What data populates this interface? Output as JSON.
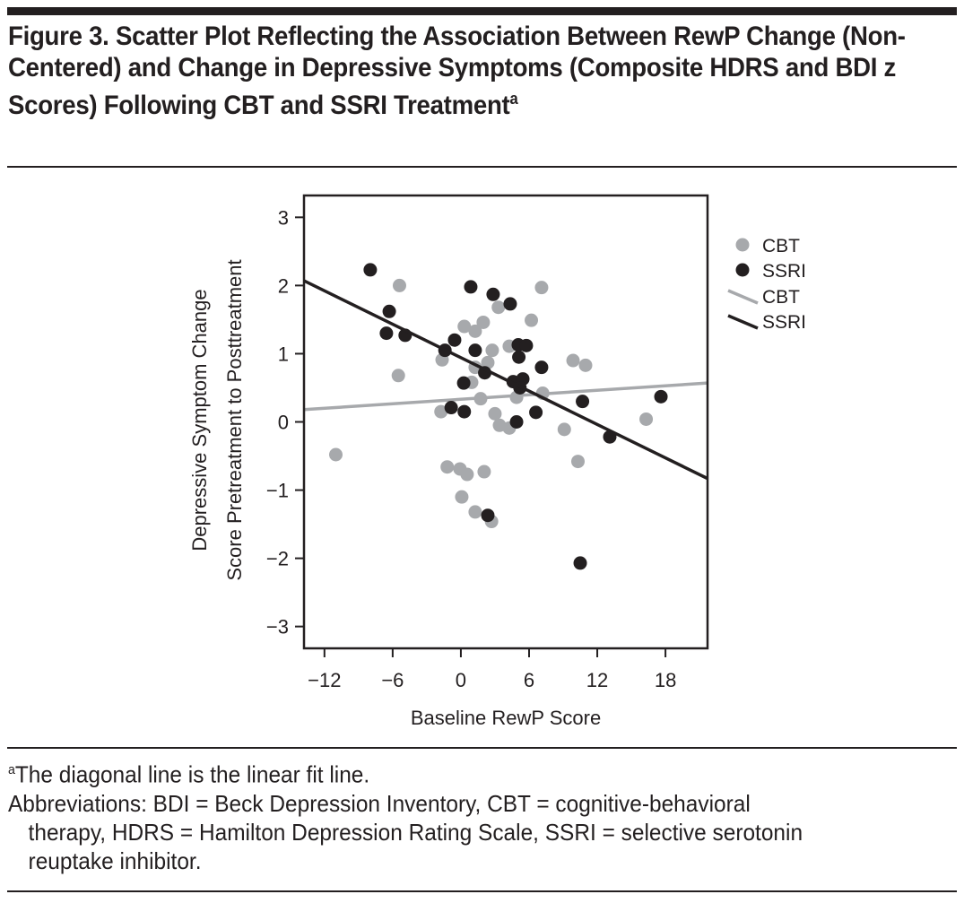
{
  "figure": {
    "title_prefix": "Figure 3.",
    "title_text": "Scatter Plot Reflecting the Association Between RewP Change (Non-Centered) and Change in Depressive Symptoms (Composite HDRS and BDI z Scores) Following CBT and SSRI Treatment",
    "title_footnote_mark": "a",
    "footnote_mark": "a",
    "footnote_text": "The diagonal line is the linear fit line.",
    "abbreviations_line1": "Abbreviations: BDI = Beck Depression Inventory, CBT = cognitive-behavioral",
    "abbreviations_line2": "therapy, HDRS = Hamilton Depression Rating Scale, SSRI = selective serotonin",
    "abbreviations_line3": "reuptake inhibitor."
  },
  "chart_data": {
    "type": "scatter",
    "title": "",
    "xlabel": "Baseline RewP Score",
    "ylabel_line1": "Depressive Symptom Change",
    "ylabel_line2": "Score Pretreatment to Posttreatment",
    "xlim": [
      -13.8,
      21.7
    ],
    "ylim": [
      -3.32,
      3.32
    ],
    "xticks": [
      -12,
      -6,
      0,
      6,
      12,
      18
    ],
    "xtick_labels": [
      "−12",
      "−6",
      "0",
      "6",
      "12",
      "18"
    ],
    "yticks": [
      3,
      2,
      1,
      0,
      -1,
      -2,
      -3
    ],
    "ytick_labels": [
      "3",
      "2",
      "1",
      "0",
      "−1",
      "−2",
      "−3"
    ],
    "grid": false,
    "legend_position": "right-outside",
    "legend": [
      {
        "label": "CBT",
        "kind": "marker",
        "series": "CBT"
      },
      {
        "label": "SSRI",
        "kind": "marker",
        "series": "SSRI"
      },
      {
        "label": "CBT",
        "kind": "line",
        "series": "CBT"
      },
      {
        "label": "SSRI",
        "kind": "line",
        "series": "SSRI"
      }
    ],
    "series": [
      {
        "name": "CBT",
        "color": "#a7a9ac",
        "points": [
          [
            -5.4,
            2.0
          ],
          [
            -1.65,
            0.91
          ],
          [
            -5.5,
            0.68
          ],
          [
            -1.75,
            0.15
          ],
          [
            -11.0,
            -0.48
          ],
          [
            7.1,
            1.97
          ],
          [
            3.3,
            1.68
          ],
          [
            6.2,
            1.49
          ],
          [
            0.3,
            1.4
          ],
          [
            1.97,
            1.46
          ],
          [
            1.26,
            1.33
          ],
          [
            2.76,
            1.05
          ],
          [
            4.26,
            1.11
          ],
          [
            2.37,
            0.87
          ],
          [
            1.26,
            0.8
          ],
          [
            0.95,
            0.58
          ],
          [
            1.74,
            0.34
          ],
          [
            4.9,
            0.36
          ],
          [
            7.2,
            0.42
          ],
          [
            3.0,
            0.12
          ],
          [
            3.4,
            -0.05
          ],
          [
            4.26,
            -0.09
          ],
          [
            9.1,
            -0.11
          ],
          [
            9.87,
            0.9
          ],
          [
            10.97,
            0.83
          ],
          [
            16.3,
            0.04
          ],
          [
            10.3,
            -0.58
          ],
          [
            -1.2,
            -0.66
          ],
          [
            -0.08,
            -0.69
          ],
          [
            0.55,
            -0.77
          ],
          [
            2.05,
            -0.73
          ],
          [
            0.08,
            -1.1
          ],
          [
            1.26,
            -1.32
          ],
          [
            2.7,
            -1.46
          ]
        ],
        "fit_line": [
          [
            -13.8,
            0.18
          ],
          [
            21.7,
            0.57
          ]
        ]
      },
      {
        "name": "SSRI",
        "color": "#231f20",
        "points": [
          [
            -7.97,
            2.23
          ],
          [
            -6.3,
            1.62
          ],
          [
            -6.55,
            1.3
          ],
          [
            -4.9,
            1.27
          ],
          [
            -1.4,
            1.05
          ],
          [
            -0.55,
            1.2
          ],
          [
            0.25,
            0.57
          ],
          [
            -0.85,
            0.21
          ],
          [
            0.3,
            0.15
          ],
          [
            0.87,
            1.98
          ],
          [
            2.84,
            1.87
          ],
          [
            4.34,
            1.73
          ],
          [
            1.26,
            1.05
          ],
          [
            5.05,
            1.13
          ],
          [
            5.76,
            1.12
          ],
          [
            5.1,
            0.95
          ],
          [
            7.1,
            0.8
          ],
          [
            2.1,
            0.72
          ],
          [
            4.6,
            0.59
          ],
          [
            5.45,
            0.63
          ],
          [
            5.2,
            0.5
          ],
          [
            6.6,
            0.14
          ],
          [
            4.9,
            0.0
          ],
          [
            10.7,
            0.3
          ],
          [
            17.6,
            0.37
          ],
          [
            13.1,
            -0.22
          ],
          [
            2.37,
            -1.37
          ],
          [
            10.5,
            -2.07
          ]
        ],
        "fit_line": [
          [
            -13.8,
            2.07
          ],
          [
            21.7,
            -0.83
          ]
        ]
      }
    ]
  }
}
